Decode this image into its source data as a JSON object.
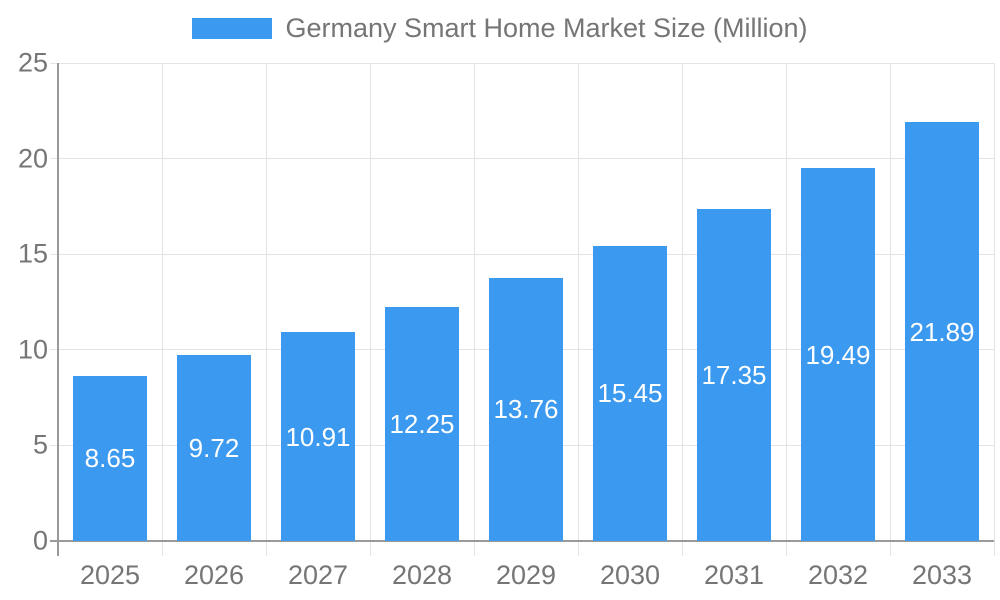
{
  "chart_data": {
    "type": "bar",
    "title": "Germany Smart Home Market Size (Million)",
    "categories": [
      "2025",
      "2026",
      "2027",
      "2028",
      "2029",
      "2030",
      "2031",
      "2032",
      "2033"
    ],
    "values": [
      8.65,
      9.72,
      10.91,
      12.25,
      13.76,
      15.45,
      17.35,
      19.49,
      21.89
    ],
    "value_labels": [
      "8.65",
      "9.72",
      "10.91",
      "12.25",
      "13.76",
      "15.45",
      "17.35",
      "19.49",
      "21.89"
    ],
    "xlabel": "",
    "ylabel": "",
    "ylim": [
      0,
      25
    ],
    "yticks": [
      0,
      5,
      10,
      15,
      20,
      25
    ],
    "grid": true,
    "legend_position": "top"
  },
  "legend": {
    "label": "Germany Smart Home Market Size (Million)"
  },
  "colors": {
    "bar": "#3B99F0",
    "grid": "#e4e4e4",
    "axis": "#9a9a9a",
    "axis_text": "#757575",
    "legend_text": "#757575",
    "value_label": "#ffffff",
    "background": "#ffffff"
  }
}
